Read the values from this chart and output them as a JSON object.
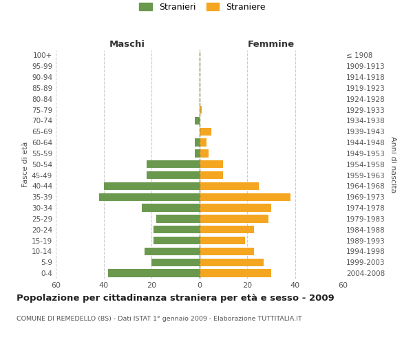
{
  "age_groups": [
    "100+",
    "95-99",
    "90-94",
    "85-89",
    "80-84",
    "75-79",
    "70-74",
    "65-69",
    "60-64",
    "55-59",
    "50-54",
    "45-49",
    "40-44",
    "35-39",
    "30-34",
    "25-29",
    "20-24",
    "15-19",
    "10-14",
    "5-9",
    "0-4"
  ],
  "birth_years": [
    "≤ 1908",
    "1909-1913",
    "1914-1918",
    "1919-1923",
    "1924-1928",
    "1929-1933",
    "1934-1938",
    "1939-1943",
    "1944-1948",
    "1949-1953",
    "1954-1958",
    "1959-1963",
    "1964-1968",
    "1969-1973",
    "1974-1978",
    "1979-1983",
    "1984-1988",
    "1989-1993",
    "1994-1998",
    "1999-2003",
    "2004-2008"
  ],
  "maschi": [
    0,
    0,
    0,
    0,
    0,
    0,
    2,
    0,
    2,
    2,
    22,
    22,
    40,
    42,
    24,
    18,
    19,
    19,
    23,
    20,
    38
  ],
  "femmine": [
    0,
    0,
    0,
    0,
    0,
    1,
    0,
    5,
    3,
    4,
    10,
    10,
    25,
    38,
    30,
    29,
    23,
    19,
    23,
    27,
    30
  ],
  "maschi_color": "#6a994e",
  "femmine_color": "#f4a620",
  "center_line_color": "#888855",
  "grid_color": "#cccccc",
  "bg_color": "#ffffff",
  "title": "Popolazione per cittadinanza straniera per età e sesso - 2009",
  "subtitle": "COMUNE DI REMEDELLO (BS) - Dati ISTAT 1° gennaio 2009 - Elaborazione TUTTITALIA.IT",
  "ylabel_left": "Fasce di età",
  "ylabel_right": "Anni di nascita",
  "header_maschi": "Maschi",
  "header_femmine": "Femmine",
  "legend_maschi": "Stranieri",
  "legend_femmine": "Straniere",
  "xlim": 60,
  "bar_height": 0.72
}
